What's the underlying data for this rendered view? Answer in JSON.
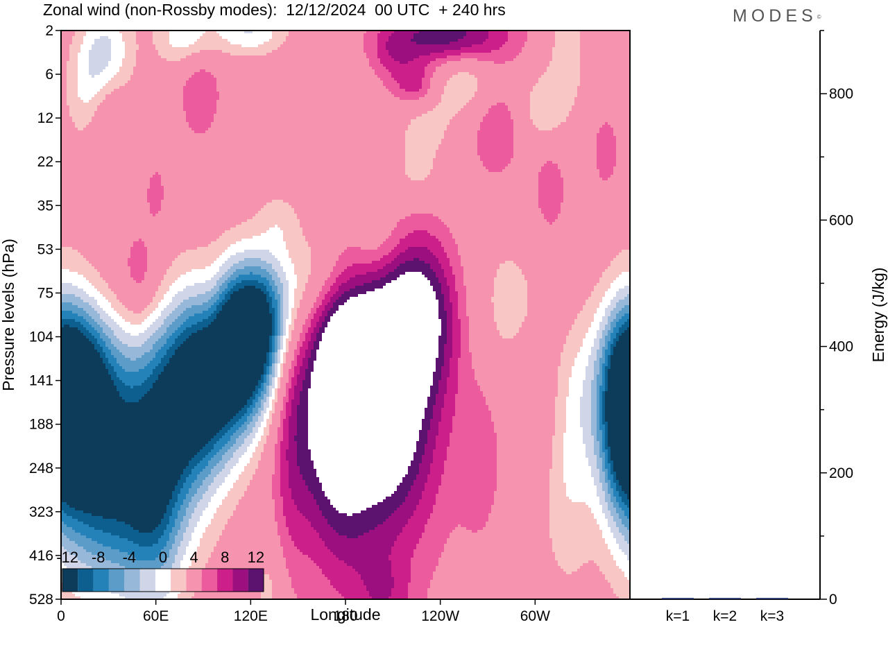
{
  "header": {
    "title": "Zonal wind (non-Rossby modes):  12/12/2024  00 UTC  + 240 hrs",
    "logo": "MODES",
    "logo_mark": "©"
  },
  "chart_data": [
    {
      "type": "heatmap",
      "title": "Zonal wind (non-Rossby modes):  12/12/2024  00 UTC  + 240 hrs",
      "xlabel": "Longitude",
      "ylabel": "Pressure levels (hPa)",
      "x_ticks": [
        "0",
        "60E",
        "120E",
        "180",
        "120W",
        "60W"
      ],
      "x_tick_degrees": [
        0,
        60,
        120,
        180,
        240,
        300
      ],
      "xlim": [
        0,
        360
      ],
      "y_ticks": [
        "2",
        "6",
        "12",
        "22",
        "35",
        "53",
        "75",
        "104",
        "141",
        "188",
        "248",
        "323",
        "416",
        "528"
      ],
      "y_order": "top-to-bottom",
      "colorbar": {
        "labels": [
          "-12",
          "-8",
          "-4",
          "0",
          "4",
          "8",
          "12"
        ],
        "levels": [
          -16,
          -14,
          -12,
          -10,
          -8,
          -6,
          -4,
          -2,
          2,
          4,
          6,
          8,
          10,
          12,
          14
        ],
        "colors": [
          "#0d3b5a",
          "#0c5f8e",
          "#2582b9",
          "#5b9cc8",
          "#97b8d8",
          "#d0d5e7",
          "#ffffff",
          "#f9c6c6",
          "#f694b0",
          "#ec5b9d",
          "#cc1f8a",
          "#9c0f7e",
          "#5c1370"
        ]
      },
      "features": [
        {
          "kind": "neg",
          "lon": 5,
          "lev": 8.35,
          "w": 16,
          "h": 1.5,
          "amp": 15
        },
        {
          "kind": "neg",
          "lon": 12,
          "lev": 8.8,
          "w": 20,
          "h": 2.2,
          "amp": 10
        },
        {
          "kind": "neg",
          "lon": 45,
          "lev": 9.8,
          "w": 26,
          "h": 2.0,
          "amp": 10
        },
        {
          "kind": "neg",
          "lon": 40,
          "lev": 10.8,
          "w": 24,
          "h": 1.5,
          "amp": 5
        },
        {
          "kind": "neg",
          "lon": 60,
          "lev": 11.0,
          "w": 12,
          "h": 2.0,
          "amp": 5
        },
        {
          "kind": "neg",
          "lon": 78,
          "lev": 8.5,
          "w": 18,
          "h": 1.6,
          "amp": 10
        },
        {
          "kind": "neg",
          "lon": 95,
          "lev": 7.9,
          "w": 18,
          "h": 1.4,
          "amp": 12
        },
        {
          "kind": "neg",
          "lon": 115,
          "lev": 7.3,
          "w": 16,
          "h": 1.2,
          "amp": 15
        },
        {
          "kind": "neg",
          "lon": 125,
          "lev": 6.7,
          "w": 14,
          "h": 1.0,
          "amp": 7
        },
        {
          "kind": "neg",
          "lon": 140,
          "lev": 6.1,
          "w": 20,
          "h": 0.9,
          "amp": 5
        },
        {
          "kind": "neg",
          "lon": 162,
          "lev": 5.3,
          "w": 14,
          "h": 0.7,
          "amp": 3
        },
        {
          "kind": "neg",
          "lon": 200,
          "lev": 4.8,
          "w": 12,
          "h": 0.6,
          "amp": 3
        },
        {
          "kind": "neg",
          "lon": 290,
          "lev": 6.3,
          "w": 18,
          "h": 1.2,
          "amp": 4
        },
        {
          "kind": "neg",
          "lon": 320,
          "lev": 7.8,
          "w": 12,
          "h": 1.3,
          "amp": 3
        },
        {
          "kind": "neg",
          "lon": 325,
          "lev": 9.2,
          "w": 10,
          "h": 2.5,
          "amp": 3
        },
        {
          "kind": "neg",
          "lon": 355,
          "lev": 8.8,
          "w": 10,
          "h": 1.6,
          "amp": 7
        },
        {
          "kind": "neg",
          "lon": 310,
          "lev": 10.8,
          "w": 10,
          "h": 1.5,
          "amp": 3
        },
        {
          "kind": "neg",
          "lon": 132,
          "lev": 12.8,
          "w": 7,
          "h": 0.8,
          "amp": 3
        },
        {
          "kind": "neg",
          "lon": 28,
          "lev": 0.55,
          "w": 12,
          "h": 0.8,
          "amp": 7
        },
        {
          "kind": "neg",
          "lon": 80,
          "lev": 0.15,
          "w": 14,
          "h": 0.5,
          "amp": 6
        },
        {
          "kind": "neg",
          "lon": 120,
          "lev": 0.0,
          "w": 16,
          "h": 0.4,
          "amp": 6
        },
        {
          "kind": "neg",
          "lon": 255,
          "lev": 1.1,
          "w": 16,
          "h": 0.6,
          "amp": 5
        },
        {
          "kind": "neg",
          "lon": 305,
          "lev": 1.8,
          "w": 10,
          "h": 0.6,
          "amp": 4
        },
        {
          "kind": "neg",
          "lon": 320,
          "lev": 0.5,
          "w": 8,
          "h": 0.9,
          "amp": 4
        },
        {
          "kind": "neg",
          "lon": 15,
          "lev": 1.5,
          "w": 10,
          "h": 0.8,
          "amp": 3
        },
        {
          "kind": "neg",
          "lon": 230,
          "lev": 2.2,
          "w": 12,
          "h": 0.5,
          "amp": 3
        },
        {
          "kind": "neg",
          "lon": 140,
          "lev": 4.3,
          "w": 10,
          "h": 0.5,
          "amp": 3
        },
        {
          "kind": "neg",
          "lon": 225,
          "lev": 3.3,
          "w": 12,
          "h": 0.5,
          "amp": 3
        },
        {
          "kind": "pos",
          "lon": 175,
          "lev": 8.6,
          "w": 18,
          "h": 2.1,
          "amp": 13
        },
        {
          "kind": "pos",
          "lon": 210,
          "lev": 8.5,
          "w": 15,
          "h": 1.7,
          "amp": 10
        },
        {
          "kind": "pos",
          "lon": 195,
          "lev": 10.3,
          "w": 26,
          "h": 3.0,
          "amp": 4
        },
        {
          "kind": "pos",
          "lon": 145,
          "lev": 9.0,
          "w": 9,
          "h": 2.5,
          "amp": 4
        },
        {
          "kind": "pos",
          "lon": 188,
          "lev": 7.2,
          "w": 15,
          "h": 0.8,
          "amp": 6
        },
        {
          "kind": "pos",
          "lon": 228,
          "lev": 6.6,
          "w": 16,
          "h": 1.2,
          "amp": 7
        },
        {
          "kind": "pos",
          "lon": 235,
          "lev": 8.6,
          "w": 15,
          "h": 2.4,
          "amp": 3
        },
        {
          "kind": "pos",
          "lon": 218,
          "lev": 6.0,
          "w": 20,
          "h": 1.2,
          "amp": 3
        },
        {
          "kind": "pos",
          "lon": 25,
          "lev": 5.8,
          "w": 28,
          "h": 1.0,
          "amp": 3
        },
        {
          "kind": "pos",
          "lon": 50,
          "lev": 5.6,
          "w": 8,
          "h": 0.8,
          "amp": 3
        },
        {
          "kind": "pos",
          "lon": 205,
          "lev": 12.9,
          "w": 12,
          "h": 0.6,
          "amp": 3
        },
        {
          "kind": "pos",
          "lon": 245,
          "lev": 0.15,
          "w": 28,
          "h": 0.5,
          "amp": 10
        },
        {
          "kind": "pos",
          "lon": 225,
          "lev": 1.3,
          "w": 10,
          "h": 0.35,
          "amp": 5
        },
        {
          "kind": "pos",
          "lon": 88,
          "lev": 1.3,
          "w": 10,
          "h": 0.9,
          "amp": 4
        },
        {
          "kind": "pos",
          "lon": 275,
          "lev": 2.2,
          "w": 12,
          "h": 0.9,
          "amp": 4
        },
        {
          "kind": "pos",
          "lon": 345,
          "lev": 2.8,
          "w": 8,
          "h": 0.8,
          "amp": 3
        },
        {
          "kind": "pos",
          "lon": 310,
          "lev": 3.6,
          "w": 8,
          "h": 0.8,
          "amp": 3
        },
        {
          "kind": "pos",
          "lon": 320,
          "lev": 7.0,
          "w": 10,
          "h": 1.5,
          "amp": 3
        },
        {
          "kind": "pos",
          "lon": 300,
          "lev": 8.8,
          "w": 12,
          "h": 2.8,
          "amp": 3
        },
        {
          "kind": "pos",
          "lon": 265,
          "lev": 9.8,
          "w": 10,
          "h": 1.5,
          "amp": 3
        },
        {
          "kind": "pos",
          "lon": 30,
          "lev": 1.9,
          "w": 8,
          "h": 0.9,
          "amp": 3
        },
        {
          "kind": "pos",
          "lon": 210,
          "lev": 0.6,
          "w": 10,
          "h": 0.5,
          "amp": 3
        },
        {
          "kind": "pos",
          "lon": 95,
          "lev": 6.5,
          "w": 8,
          "h": 1.0,
          "amp": 3
        },
        {
          "kind": "pos",
          "lon": 60,
          "lev": 3.7,
          "w": 5,
          "h": 0.5,
          "amp": 3
        }
      ]
    },
    {
      "type": "bar",
      "ylabel": "Energy (J/kg)",
      "categories": [
        "k=1",
        "k=2",
        "k=3"
      ],
      "values": [
        2,
        2,
        2
      ],
      "ylim": [
        0,
        900
      ],
      "y_ticks": [
        0,
        200,
        400,
        600,
        800
      ],
      "y_minor_step": 100,
      "axis_side": "right",
      "bar_color": "#1f2a6b"
    }
  ]
}
